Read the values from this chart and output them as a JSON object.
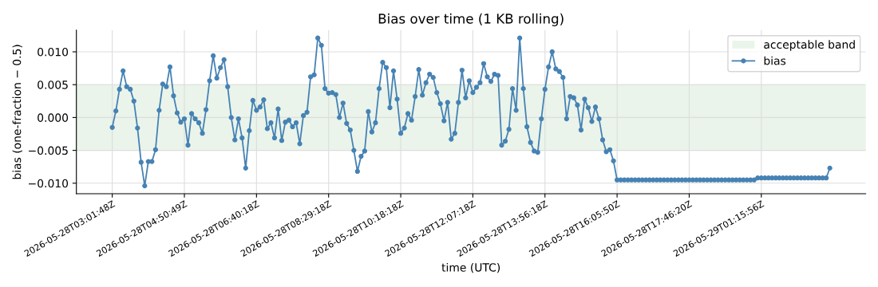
{
  "chart_data": {
    "type": "line",
    "title": "Bias over time (1 KB rolling)",
    "xlabel": "time (UTC)",
    "ylabel": "bias (one-fraction − 0.5)",
    "categories": [
      "2026-05-28T03:01:48Z",
      null,
      null,
      null,
      null,
      null,
      null,
      null,
      null,
      null,
      null,
      null,
      null,
      null,
      null,
      null,
      null,
      null,
      null,
      null,
      "2026-05-28T04:50:49Z",
      null,
      null,
      null,
      null,
      null,
      null,
      null,
      null,
      null,
      null,
      null,
      null,
      null,
      null,
      null,
      null,
      null,
      null,
      null,
      "2026-05-28T06:40:18Z",
      null,
      null,
      null,
      null,
      null,
      null,
      null,
      null,
      null,
      null,
      null,
      null,
      null,
      null,
      null,
      null,
      null,
      null,
      null,
      "2026-05-28T08:29:18Z",
      null,
      null,
      null,
      null,
      null,
      null,
      null,
      null,
      null,
      null,
      null,
      null,
      null,
      null,
      null,
      null,
      null,
      null,
      null,
      "2026-05-28T10:18:18Z",
      null,
      null,
      null,
      null,
      null,
      null,
      null,
      null,
      null,
      null,
      null,
      null,
      null,
      null,
      null,
      null,
      null,
      null,
      null,
      "2026-05-28T12:07:18Z",
      null,
      null,
      null,
      null,
      null,
      null,
      null,
      null,
      null,
      null,
      null,
      null,
      null,
      null,
      null,
      null,
      null,
      null,
      null,
      "2026-05-28T13:56:18Z",
      null,
      null,
      null,
      null,
      null,
      null,
      null,
      null,
      null,
      null,
      null,
      null,
      null,
      null,
      null,
      null,
      null,
      null,
      null,
      "2026-05-28T16:05:50Z",
      null,
      null,
      null,
      null,
      null,
      null,
      null,
      null,
      null,
      null,
      null,
      null,
      null,
      null,
      null,
      null,
      null,
      null,
      null,
      "2026-05-28T17:46:20Z",
      null,
      null,
      null,
      null,
      null,
      null,
      null,
      null,
      null,
      null,
      null,
      null,
      null,
      null,
      null,
      null,
      null,
      null,
      null,
      "2026-05-29T01:15:56Z",
      null,
      null,
      null,
      null,
      null,
      null,
      null,
      null,
      null,
      null,
      null,
      null,
      null,
      null,
      null,
      null,
      null,
      null,
      null
    ],
    "series": [
      {
        "name": "bias",
        "color": "#4682b4",
        "values": [
          -0.0015,
          0.001,
          0.0043,
          0.0071,
          0.0047,
          0.0043,
          0.0025,
          -0.0016,
          -0.0068,
          -0.0104,
          -0.0067,
          -0.0067,
          -0.0049,
          0.0011,
          0.0051,
          0.0047,
          0.0077,
          0.0033,
          0.0007,
          -0.0007,
          -0.0002,
          -0.0042,
          0.0006,
          -0.0002,
          -0.0008,
          -0.0024,
          0.0012,
          0.0056,
          0.0094,
          0.006,
          0.0076,
          0.0088,
          0.0047,
          0.0,
          -0.0034,
          -0.0002,
          -0.0031,
          -0.0077,
          -0.002,
          0.0026,
          0.0011,
          0.0016,
          0.0027,
          -0.0017,
          -0.0008,
          -0.0031,
          0.0013,
          -0.0035,
          -0.0007,
          -0.0004,
          -0.0014,
          -0.0008,
          -0.004,
          0.0003,
          0.0008,
          0.0062,
          0.0065,
          0.0121,
          0.011,
          0.0044,
          0.0037,
          0.0038,
          0.0035,
          0.0,
          0.0022,
          -0.0009,
          -0.0019,
          -0.005,
          -0.0082,
          -0.0059,
          -0.0051,
          0.0009,
          -0.0022,
          -0.0008,
          0.0044,
          0.0084,
          0.0076,
          0.0015,
          0.0071,
          0.0028,
          -0.0024,
          -0.0016,
          0.0006,
          -0.0004,
          0.0032,
          0.0073,
          0.0034,
          0.0053,
          0.0066,
          0.0061,
          0.0038,
          0.0021,
          -0.0005,
          0.0023,
          -0.0033,
          -0.0024,
          0.0023,
          0.0072,
          0.003,
          0.0056,
          0.0038,
          0.0046,
          0.0053,
          0.0082,
          0.0062,
          0.0055,
          0.0066,
          0.0064,
          -0.0042,
          -0.0036,
          -0.0018,
          0.0044,
          0.0011,
          0.0121,
          0.0044,
          -0.0014,
          -0.0038,
          -0.0051,
          -0.0053,
          -0.0002,
          0.0043,
          0.0077,
          0.01,
          0.0074,
          0.007,
          0.0061,
          -0.0002,
          0.0032,
          0.003,
          0.0019,
          -0.0019,
          0.0028,
          0.0015,
          -0.0006,
          0.0016,
          -0.0002,
          -0.0034,
          -0.0052,
          -0.0049,
          -0.0066,
          -0.0095,
          -0.0095,
          -0.0095,
          -0.0095,
          -0.0095,
          -0.0095,
          -0.0095,
          -0.0095,
          -0.0095,
          -0.0095,
          -0.0095,
          -0.0095,
          -0.0095,
          -0.0095,
          -0.0095,
          -0.0095,
          -0.0095,
          -0.0095,
          -0.0095,
          -0.0095,
          -0.0095,
          -0.0095,
          -0.0095,
          -0.0095,
          -0.0095,
          -0.0095,
          -0.0095,
          -0.0095,
          -0.0095,
          -0.0095,
          -0.0095,
          -0.0095,
          -0.0095,
          -0.0095,
          -0.0095,
          -0.0095,
          -0.0095,
          -0.0095,
          -0.0095,
          -0.0092,
          -0.0092,
          -0.0092,
          -0.0092,
          -0.0092,
          -0.0092,
          -0.0092,
          -0.0092,
          -0.0092,
          -0.0092,
          -0.0092,
          -0.0092,
          -0.0092,
          -0.0092,
          -0.0092,
          -0.0092,
          -0.0092,
          -0.0092,
          -0.0092,
          -0.0092,
          -0.0077
        ]
      }
    ],
    "bands": [
      {
        "axis": "y",
        "from": -0.005,
        "to": 0.005,
        "label": "acceptable band",
        "color": "#eaf4ea"
      }
    ],
    "ylim": [
      -0.0116,
      0.0133
    ],
    "yticks": [
      {
        "value": -0.01,
        "label": "−0.010"
      },
      {
        "value": -0.005,
        "label": "−0.005"
      },
      {
        "value": 0,
        "label": "0.000"
      },
      {
        "value": 0.005,
        "label": "0.005"
      },
      {
        "value": 0.01,
        "label": "0.010"
      }
    ],
    "grid": true,
    "legend": "top right",
    "marker": "circle",
    "line_style": "solid"
  }
}
